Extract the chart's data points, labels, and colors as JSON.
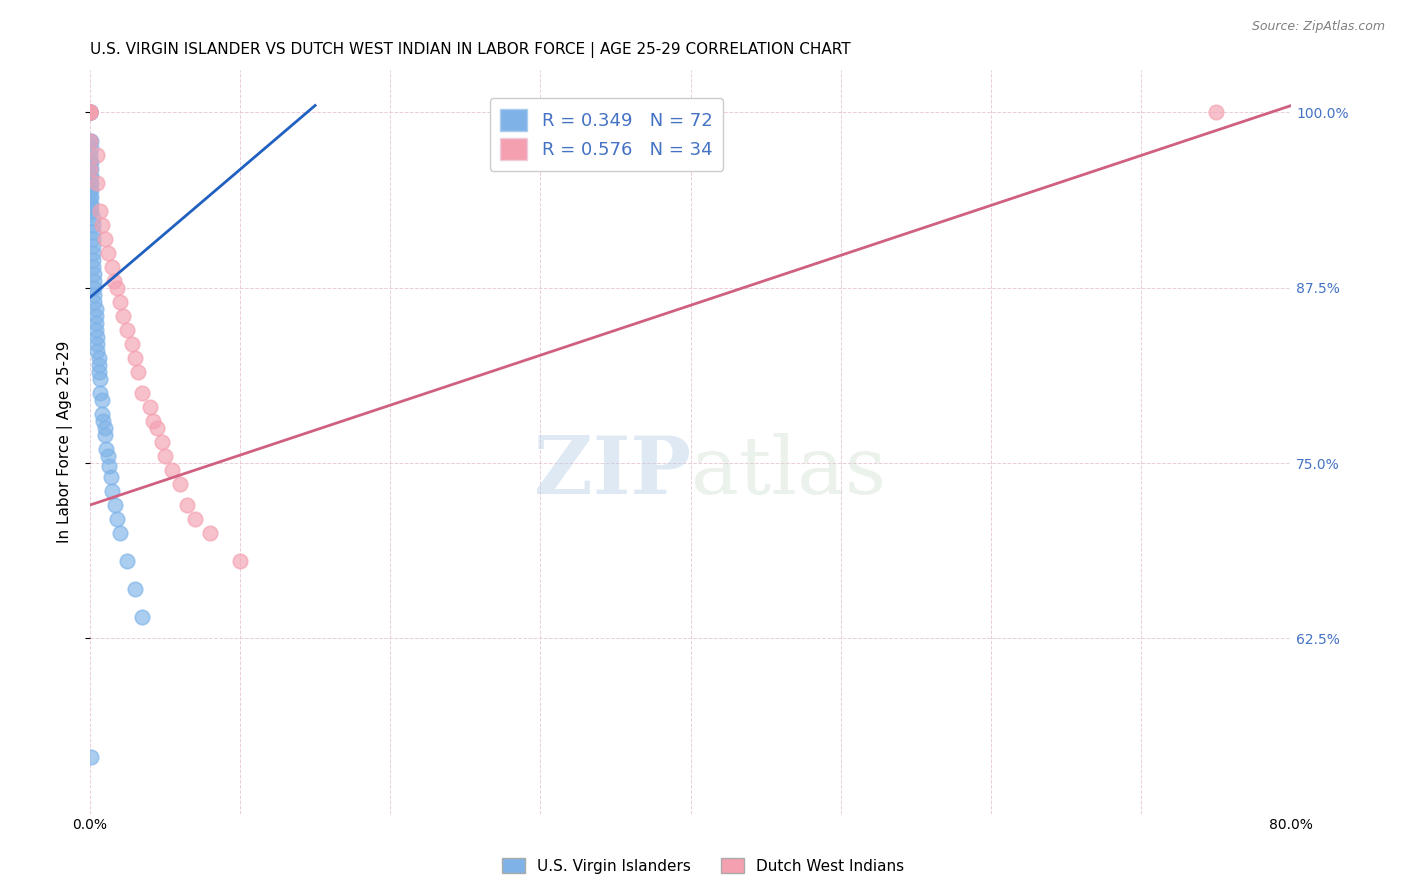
{
  "title": "U.S. VIRGIN ISLANDER VS DUTCH WEST INDIAN IN LABOR FORCE | AGE 25-29 CORRELATION CHART",
  "source": "Source: ZipAtlas.com",
  "ylabel": "In Labor Force | Age 25-29",
  "xlim": [
    0.0,
    0.8
  ],
  "ylim": [
    0.5,
    1.03
  ],
  "xticks": [
    0.0,
    0.1,
    0.2,
    0.3,
    0.4,
    0.5,
    0.6,
    0.7,
    0.8
  ],
  "xticklabels": [
    "0.0%",
    "",
    "",
    "",
    "",
    "",
    "",
    "",
    "80.0%"
  ],
  "yticks_right": [
    0.625,
    0.75,
    0.875,
    1.0
  ],
  "ytick_right_labels": [
    "62.5%",
    "75.0%",
    "87.5%",
    "100.0%"
  ],
  "blue_color": "#7fb3e8",
  "pink_color": "#f4a0b0",
  "blue_line_color": "#2060c0",
  "pink_line_color": "#d06080",
  "R_blue": 0.349,
  "N_blue": 72,
  "R_pink": 0.576,
  "N_pink": 34,
  "legend_label_blue": "U.S. Virgin Islanders",
  "legend_label_pink": "Dutch West Indians",
  "watermark_zip": "ZIP",
  "watermark_atlas": "atlas",
  "blue_scatter_x": [
    0.0,
    0.0,
    0.0,
    0.0,
    0.0,
    0.0,
    0.0,
    0.0,
    0.0,
    0.0,
    0.0,
    0.0,
    0.0,
    0.0,
    0.0,
    0.0,
    0.0,
    0.0,
    0.0,
    0.0,
    0.001,
    0.001,
    0.001,
    0.001,
    0.001,
    0.001,
    0.001,
    0.001,
    0.001,
    0.001,
    0.002,
    0.002,
    0.002,
    0.002,
    0.002,
    0.002,
    0.002,
    0.002,
    0.003,
    0.003,
    0.003,
    0.003,
    0.003,
    0.004,
    0.004,
    0.004,
    0.004,
    0.005,
    0.005,
    0.005,
    0.006,
    0.006,
    0.006,
    0.007,
    0.007,
    0.008,
    0.008,
    0.009,
    0.01,
    0.01,
    0.011,
    0.012,
    0.013,
    0.014,
    0.015,
    0.017,
    0.018,
    0.02,
    0.025,
    0.03,
    0.035,
    0.001
  ],
  "blue_scatter_y": [
    1.0,
    1.0,
    1.0,
    1.0,
    1.0,
    1.0,
    1.0,
    1.0,
    1.0,
    1.0,
    0.98,
    0.97,
    0.965,
    0.96,
    0.955,
    0.95,
    0.945,
    0.94,
    0.935,
    0.93,
    0.98,
    0.975,
    0.965,
    0.96,
    0.955,
    0.95,
    0.945,
    0.94,
    0.935,
    0.93,
    0.925,
    0.92,
    0.915,
    0.91,
    0.905,
    0.9,
    0.895,
    0.89,
    0.885,
    0.88,
    0.875,
    0.87,
    0.865,
    0.86,
    0.855,
    0.85,
    0.845,
    0.84,
    0.835,
    0.83,
    0.825,
    0.82,
    0.815,
    0.81,
    0.8,
    0.795,
    0.785,
    0.78,
    0.775,
    0.77,
    0.76,
    0.755,
    0.748,
    0.74,
    0.73,
    0.72,
    0.71,
    0.7,
    0.68,
    0.66,
    0.64,
    0.54
  ],
  "pink_scatter_x": [
    0.0,
    0.0,
    0.0,
    0.0,
    0.0,
    0.0,
    0.005,
    0.005,
    0.007,
    0.008,
    0.01,
    0.012,
    0.015,
    0.016,
    0.018,
    0.02,
    0.022,
    0.025,
    0.028,
    0.03,
    0.032,
    0.035,
    0.04,
    0.042,
    0.045,
    0.048,
    0.05,
    0.055,
    0.06,
    0.065,
    0.07,
    0.08,
    0.1,
    0.75
  ],
  "pink_scatter_y": [
    1.0,
    1.0,
    1.0,
    1.0,
    0.98,
    0.96,
    0.97,
    0.95,
    0.93,
    0.92,
    0.91,
    0.9,
    0.89,
    0.88,
    0.875,
    0.865,
    0.855,
    0.845,
    0.835,
    0.825,
    0.815,
    0.8,
    0.79,
    0.78,
    0.775,
    0.765,
    0.755,
    0.745,
    0.735,
    0.72,
    0.71,
    0.7,
    0.68,
    1.0
  ],
  "blue_regline_x": [
    0.0,
    0.15
  ],
  "blue_regline_y": [
    0.868,
    1.005
  ],
  "pink_regline_x": [
    0.0,
    0.8
  ],
  "pink_regline_y": [
    0.72,
    1.005
  ]
}
